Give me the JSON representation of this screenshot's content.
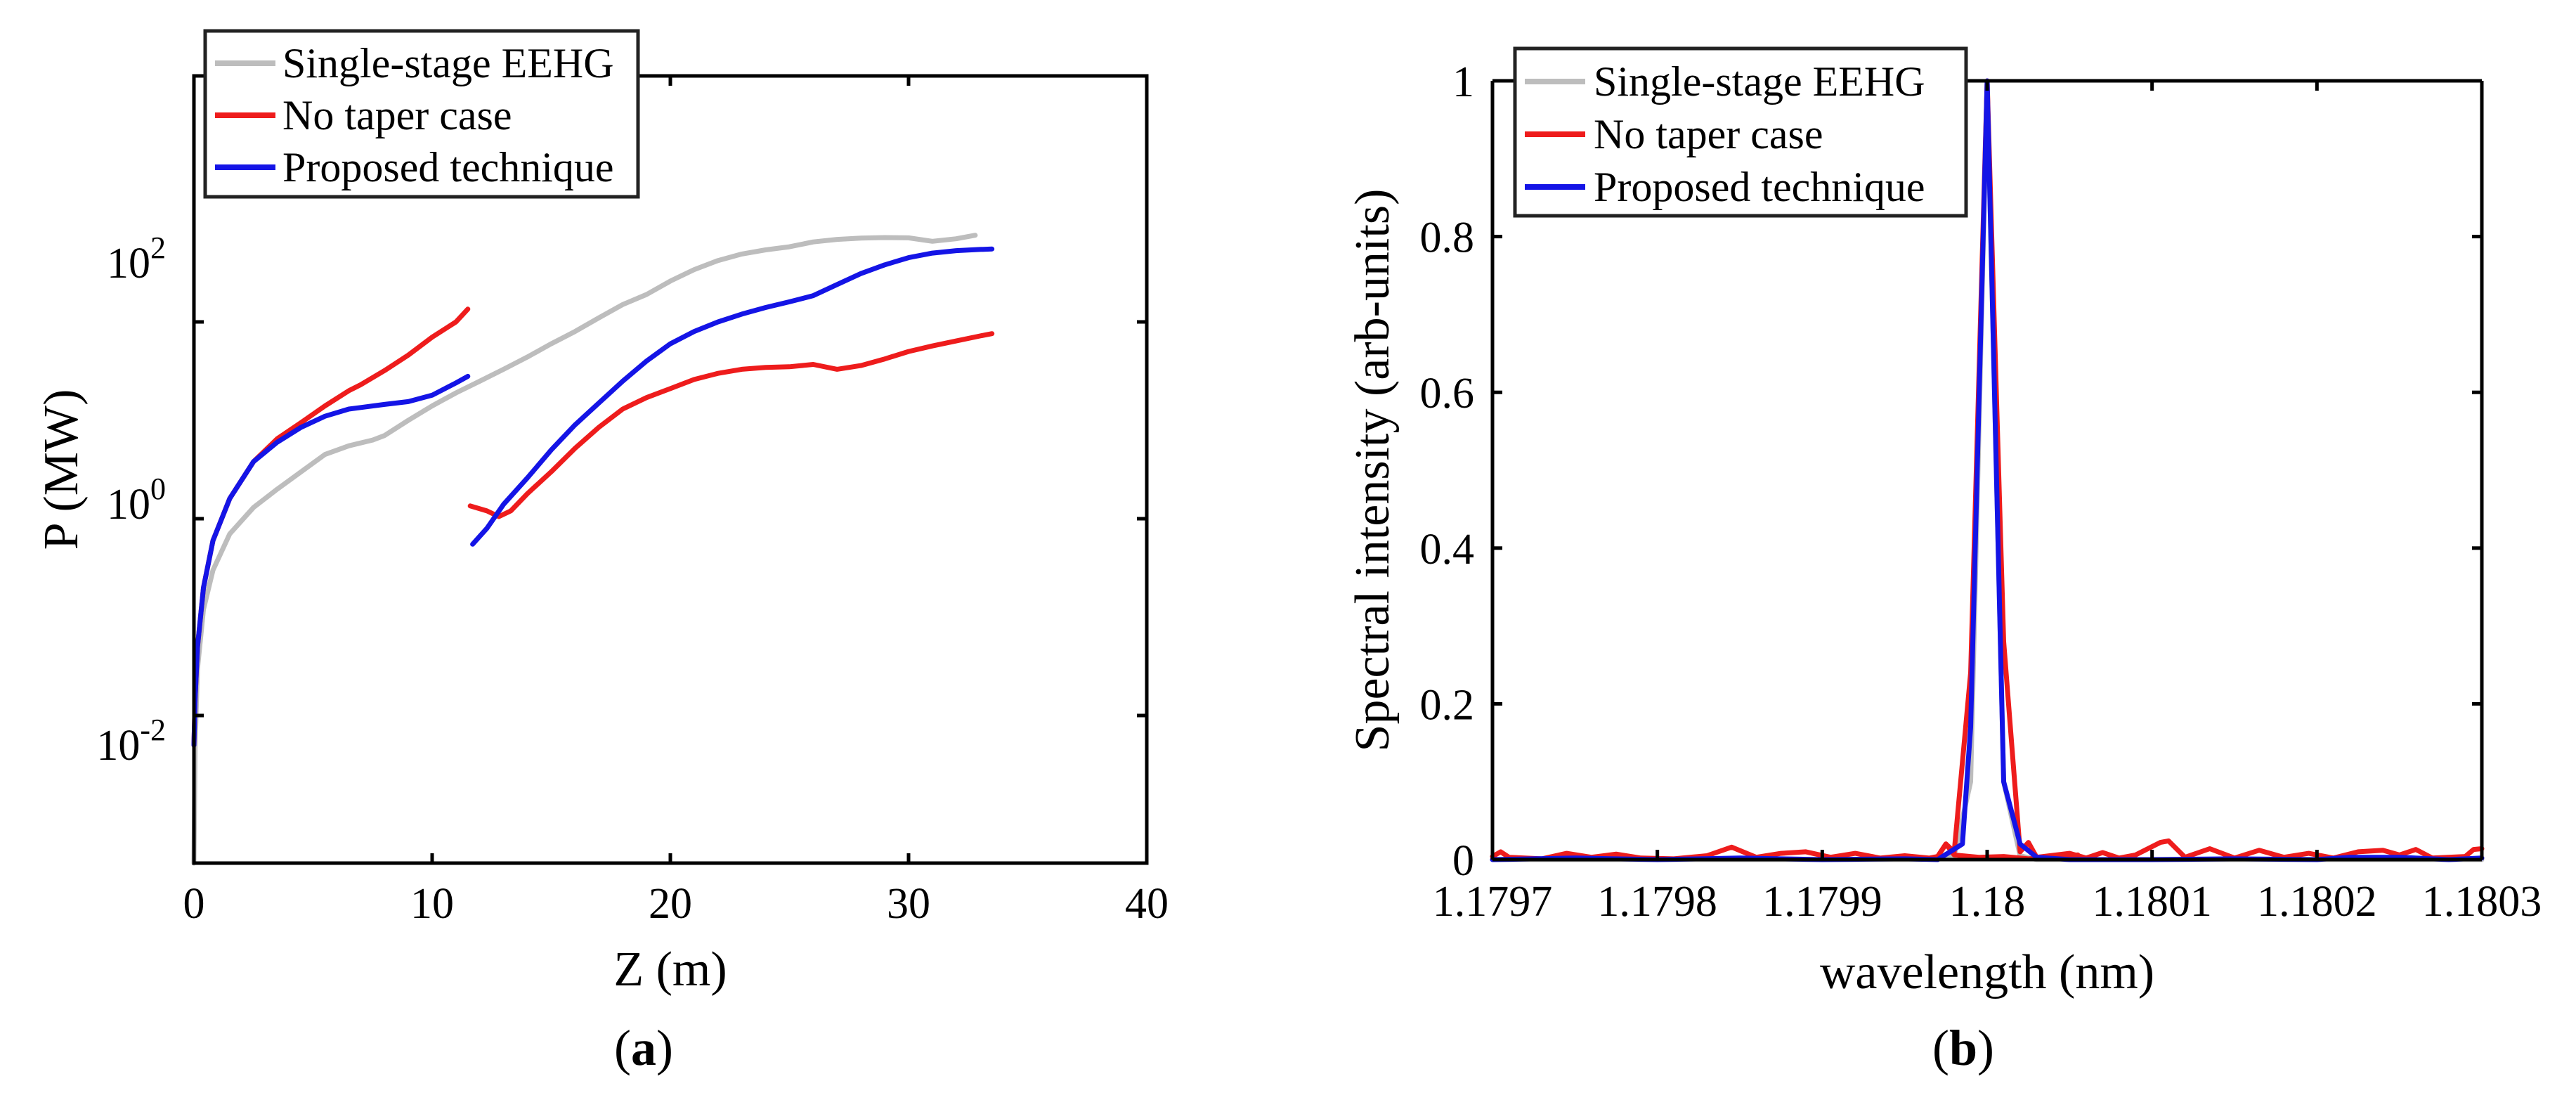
{
  "captions": {
    "a_prefix": "(",
    "a_letter": "a",
    "a_suffix": ")",
    "b_prefix": "(",
    "b_letter": "b",
    "b_suffix": ")"
  },
  "chart_data": [
    {
      "type": "line",
      "id": "a",
      "xlabel": "Z (m)",
      "ylabel": "P (MW)",
      "yscale": "log",
      "xlim": [
        0,
        40
      ],
      "ylim_exp": [
        -3.5,
        4.5
      ],
      "xticks": [
        0,
        10,
        20,
        30,
        40
      ],
      "yticks": [
        {
          "base": "10",
          "exp": "-2",
          "value_exp": -2
        },
        {
          "base": "10",
          "exp": "0",
          "value_exp": 0
        },
        {
          "base": "10",
          "exp": "2",
          "value_exp": 2
        }
      ],
      "legend": {
        "position": "top-left",
        "entries": [
          "Single-stage EEHG",
          "No taper case",
          "Proposed technique"
        ]
      },
      "colors": {
        "Single-stage EEHG": "#bdbdbd",
        "No taper case": "#ee1c1c",
        "Proposed technique": "#1414e6"
      },
      "series": [
        {
          "name": "Single-stage EEHG",
          "segments": [
            [
              [
                0,
                0.0003
              ],
              [
                0.05,
                0.005
              ],
              [
                0.15,
                0.03
              ],
              [
                0.4,
                0.12
              ],
              [
                0.8,
                0.3
              ],
              [
                1.5,
                0.7
              ],
              [
                2.5,
                1.3
              ],
              [
                3.5,
                2
              ],
              [
                4.5,
                3
              ],
              [
                5.5,
                4.5
              ],
              [
                6.5,
                5.5
              ],
              [
                7.5,
                6.3
              ],
              [
                8,
                7
              ],
              [
                9,
                10
              ],
              [
                10,
                14
              ],
              [
                11,
                19
              ],
              [
                12,
                25
              ],
              [
                13,
                33
              ],
              [
                14,
                44
              ],
              [
                15,
                60
              ],
              [
                16,
                80
              ],
              [
                17,
                110
              ],
              [
                18,
                150
              ],
              [
                19,
                190
              ],
              [
                20,
                260
              ],
              [
                21,
                340
              ],
              [
                22,
                420
              ],
              [
                23,
                490
              ],
              [
                24,
                540
              ],
              [
                25,
                580
              ],
              [
                26,
                650
              ],
              [
                27,
                690
              ],
              [
                28,
                710
              ],
              [
                29,
                720
              ],
              [
                30,
                715
              ],
              [
                31,
                660
              ],
              [
                32,
                700
              ],
              [
                32.8,
                760
              ]
            ]
          ]
        },
        {
          "name": "No taper case",
          "segments": [
            [
              [
                0,
                0.005
              ],
              [
                0.05,
                0.015
              ],
              [
                0.15,
                0.05
              ],
              [
                0.4,
                0.2
              ],
              [
                0.8,
                0.6
              ],
              [
                1.5,
                1.6
              ],
              [
                2.5,
                3.8
              ],
              [
                3.5,
                6.5
              ],
              [
                4.5,
                9.5
              ],
              [
                5.5,
                14
              ],
              [
                6.5,
                20
              ],
              [
                7,
                23
              ],
              [
                8,
                32
              ],
              [
                9,
                46
              ],
              [
                10,
                70
              ],
              [
                11,
                100
              ],
              [
                11.5,
                135
              ]
            ],
            [
              [
                11.6,
                1.35
              ],
              [
                12.3,
                1.2
              ],
              [
                12.8,
                1.05
              ],
              [
                13.3,
                1.2
              ],
              [
                14,
                1.8
              ],
              [
                15,
                3
              ],
              [
                16,
                5.2
              ],
              [
                17,
                8.5
              ],
              [
                18,
                13
              ],
              [
                19,
                17
              ],
              [
                20,
                21
              ],
              [
                21,
                26
              ],
              [
                22,
                30
              ],
              [
                23,
                33
              ],
              [
                24,
                34.5
              ],
              [
                25,
                35
              ],
              [
                26,
                37
              ],
              [
                27,
                33
              ],
              [
                28,
                36
              ],
              [
                29,
                42
              ],
              [
                30,
                50
              ],
              [
                31,
                57
              ],
              [
                32,
                64
              ],
              [
                33,
                72
              ],
              [
                33.5,
                76
              ]
            ]
          ]
        },
        {
          "name": "Proposed technique",
          "segments": [
            [
              [
                0,
                0.005
              ],
              [
                0.05,
                0.015
              ],
              [
                0.15,
                0.05
              ],
              [
                0.4,
                0.2
              ],
              [
                0.8,
                0.6
              ],
              [
                1.5,
                1.6
              ],
              [
                2.5,
                3.8
              ],
              [
                3.5,
                6
              ],
              [
                4.5,
                8.5
              ],
              [
                5.5,
                11
              ],
              [
                6.5,
                13
              ],
              [
                7,
                13.5
              ],
              [
                8,
                14.5
              ],
              [
                9,
                15.5
              ],
              [
                10,
                18
              ],
              [
                11,
                24
              ],
              [
                11.5,
                28
              ]
            ],
            [
              [
                11.7,
                0.55
              ],
              [
                12.3,
                0.8
              ],
              [
                13,
                1.4
              ],
              [
                14,
                2.6
              ],
              [
                15,
                5
              ],
              [
                16,
                9
              ],
              [
                17,
                15
              ],
              [
                18,
                25
              ],
              [
                19,
                40
              ],
              [
                20,
                60
              ],
              [
                21,
                80
              ],
              [
                22,
                100
              ],
              [
                23,
                120
              ],
              [
                24,
                140
              ],
              [
                25,
                160
              ],
              [
                26,
                185
              ],
              [
                27,
                240
              ],
              [
                28,
                310
              ],
              [
                29,
                380
              ],
              [
                30,
                450
              ],
              [
                31,
                500
              ],
              [
                32,
                530
              ],
              [
                33,
                545
              ],
              [
                33.5,
                550
              ]
            ]
          ]
        }
      ]
    },
    {
      "type": "line",
      "id": "b",
      "xlabel": "wavelength (nm)",
      "ylabel": "Spectral intensity (arb-units)",
      "xlim": [
        1.1797,
        1.1803
      ],
      "ylim": [
        0,
        1
      ],
      "xticks": [
        {
          "value": 1.1797,
          "label": "1.1797"
        },
        {
          "value": 1.1798,
          "label": "1.1798"
        },
        {
          "value": 1.1799,
          "label": "1.1799"
        },
        {
          "value": 1.18,
          "label": "1.18"
        },
        {
          "value": 1.1801,
          "label": "1.1801"
        },
        {
          "value": 1.1802,
          "label": "1.1802"
        },
        {
          "value": 1.1803,
          "label": "1.1803"
        }
      ],
      "yticks": [
        {
          "value": 0,
          "label": "0"
        },
        {
          "value": 0.2,
          "label": "0.2"
        },
        {
          "value": 0.4,
          "label": "0.4"
        },
        {
          "value": 0.6,
          "label": "0.6"
        },
        {
          "value": 0.8,
          "label": "0.8"
        },
        {
          "value": 1,
          "label": "1"
        }
      ],
      "legend": {
        "position": "top-left",
        "entries": [
          "Single-stage EEHG",
          "No taper case",
          "Proposed technique"
        ]
      },
      "colors": {
        "Single-stage EEHG": "#bdbdbd",
        "No taper case": "#ee1c1c",
        "Proposed technique": "#1414e6"
      },
      "series": [
        {
          "name": "Single-stage EEHG",
          "segments": [
            [
              [
                1.1797,
                0
              ],
              [
                1.17996,
                0
              ],
              [
                1.17998,
                0.005
              ],
              [
                1.17999,
                0.1
              ],
              [
                1.18,
                1
              ],
              [
                1.18001,
                0.1
              ],
              [
                1.18002,
                0.005
              ],
              [
                1.18003,
                0
              ],
              [
                1.1803,
                0
              ]
            ]
          ]
        },
        {
          "name": "No taper case",
          "segments": [
            [
              [
                1.1797,
                0.004
              ],
              [
                1.179705,
                0.01
              ],
              [
                1.17971,
                0.003
              ],
              [
                1.17973,
                0.001
              ],
              [
                1.179745,
                0.008
              ],
              [
                1.17976,
                0.003
              ],
              [
                1.179775,
                0.007
              ],
              [
                1.17979,
                0.002
              ],
              [
                1.17981,
                0.001
              ],
              [
                1.17983,
                0.005
              ],
              [
                1.179845,
                0.016
              ],
              [
                1.17986,
                0.003
              ],
              [
                1.179875,
                0.008
              ],
              [
                1.17989,
                0.01
              ],
              [
                1.179905,
                0.003
              ],
              [
                1.17992,
                0.008
              ],
              [
                1.179935,
                0.002
              ],
              [
                1.17995,
                0.005
              ],
              [
                1.179965,
                0.002
              ],
              [
                1.17998,
                0.006
              ],
              [
                1.179995,
                0.003
              ],
              [
                1.18001,
                0.004
              ],
              [
                1.180025,
                0.001
              ],
              [
                1.18004,
                0.003
              ],
              [
                1.180055,
                0.006
              ],
              [
                1.17997,
                0.004
              ],
              [
                1.179975,
                0.02
              ]
            ],
            [
              [
                1.17997,
                0.004
              ],
              [
                1.179975,
                0.02
              ],
              [
                1.17998,
                0.01
              ],
              [
                1.17999,
                0.24
              ],
              [
                1.18,
                1
              ],
              [
                1.18001,
                0.28
              ],
              [
                1.18002,
                0.01
              ],
              [
                1.180025,
                0.022
              ],
              [
                1.18003,
                0.003
              ],
              [
                1.18005,
                0.008
              ],
              [
                1.18006,
                0.002
              ],
              [
                1.18007,
                0.009
              ],
              [
                1.18008,
                0.002
              ],
              [
                1.18009,
                0.006
              ],
              [
                1.180105,
                0.022
              ],
              [
                1.18011,
                0.024
              ],
              [
                1.18012,
                0.003
              ],
              [
                1.180135,
                0.014
              ],
              [
                1.18015,
                0.002
              ],
              [
                1.180165,
                0.012
              ],
              [
                1.18018,
                0.003
              ],
              [
                1.180195,
                0.008
              ],
              [
                1.18021,
                0.002
              ],
              [
                1.180225,
                0.01
              ],
              [
                1.18024,
                0.012
              ],
              [
                1.18025,
                0.006
              ],
              [
                1.18026,
                0.013
              ],
              [
                1.18027,
                0.002
              ],
              [
                1.18029,
                0.004
              ],
              [
                1.180295,
                0.013
              ],
              [
                1.1803,
                0.014
              ]
            ]
          ]
        },
        {
          "name": "Proposed technique",
          "segments": [
            [
              [
                1.1797,
                0
              ],
              [
                1.17975,
                0.002
              ],
              [
                1.1798,
                0
              ],
              [
                1.17985,
                0.002
              ],
              [
                1.1799,
                0
              ],
              [
                1.17995,
                0.001
              ],
              [
                1.17997,
                0
              ],
              [
                1.179985,
                0.02
              ],
              [
                1.17999,
                0.17
              ],
              [
                1.18,
                1
              ],
              [
                1.18001,
                0.1
              ],
              [
                1.18002,
                0.02
              ],
              [
                1.18003,
                0.003
              ],
              [
                1.18005,
                0
              ],
              [
                1.1801,
                0
              ],
              [
                1.18015,
                0.001
              ],
              [
                1.1802,
                0
              ],
              [
                1.18022,
                0.003
              ],
              [
                1.18025,
                0.003
              ],
              [
                1.18028,
                0
              ],
              [
                1.1803,
                0.002
              ]
            ]
          ]
        }
      ]
    }
  ]
}
